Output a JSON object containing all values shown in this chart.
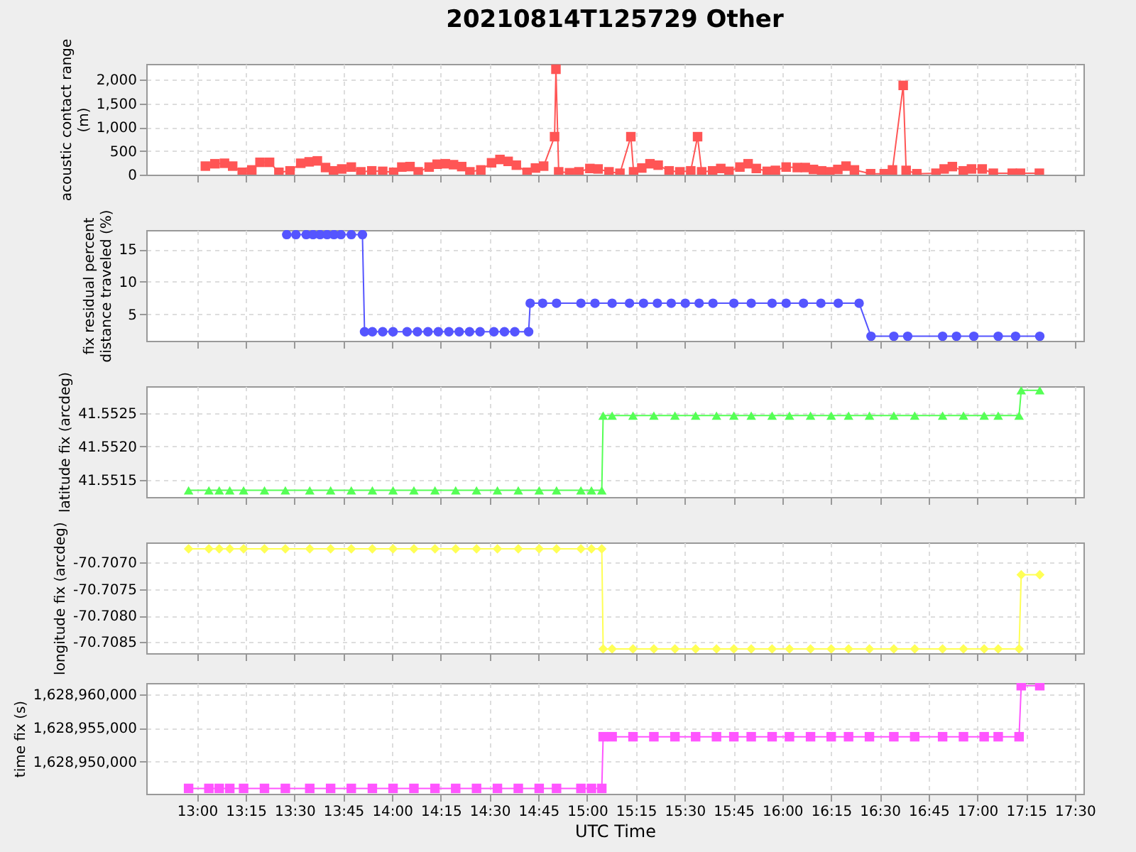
{
  "chart_data": [
    {
      "type": "line",
      "title": "20210814T125729 Other",
      "ylabel": "acoustic contact range (m)",
      "marker": "square",
      "line_style": "solid",
      "grid": true,
      "tick_labels": "y",
      "x": [
        13.043,
        13.092,
        13.141,
        13.183,
        13.232,
        13.281,
        13.323,
        13.372,
        13.42,
        13.477,
        13.532,
        13.575,
        13.617,
        13.659,
        13.7,
        13.742,
        13.791,
        13.84,
        13.896,
        13.952,
        14.008,
        14.05,
        14.092,
        14.134,
        14.19,
        14.231,
        14.273,
        14.315,
        14.357,
        14.399,
        14.455,
        14.51,
        14.553,
        14.595,
        14.637,
        14.692,
        14.735,
        14.777,
        14.833,
        14.84,
        14.854,
        14.91,
        14.958,
        15.014,
        15.056,
        15.112,
        15.168,
        15.224,
        15.238,
        15.28,
        15.322,
        15.364,
        15.42,
        15.475,
        15.531,
        15.566,
        15.587,
        15.643,
        15.685,
        15.727,
        15.783,
        15.825,
        15.867,
        15.923,
        15.965,
        16.02,
        16.077,
        16.118,
        16.16,
        16.202,
        16.244,
        16.285,
        16.327,
        16.37,
        16.453,
        16.523,
        16.565,
        16.62,
        16.635,
        16.69,
        16.788,
        16.83,
        16.872,
        16.928,
        16.97,
        17.025,
        17.082,
        17.179,
        17.221,
        17.318
      ],
      "series": [
        {
          "color": "#ff5555",
          "values": [
            180,
            230,
            240,
            180,
            50,
            100,
            260,
            260,
            50,
            80,
            240,
            270,
            290,
            150,
            80,
            120,
            160,
            60,
            80,
            70,
            50,
            160,
            170,
            60,
            160,
            220,
            230,
            210,
            170,
            60,
            100,
            250,
            320,
            280,
            200,
            50,
            140,
            180,
            800,
            2220,
            60,
            40,
            60,
            130,
            120,
            60,
            30,
            800,
            60,
            140,
            230,
            200,
            80,
            60,
            80,
            800,
            60,
            80,
            130,
            70,
            160,
            230,
            130,
            70,
            90,
            160,
            150,
            150,
            110,
            80,
            60,
            110,
            180,
            100,
            20,
            20,
            100,
            1880,
            90,
            20,
            30,
            120,
            170,
            80,
            120,
            120,
            30,
            30,
            30,
            30
          ]
        }
      ],
      "xlim": [
        12.74,
        17.544
      ],
      "xticks": [
        {
          "value": 13,
          "label": null
        },
        {
          "value": 13.25,
          "label": null
        },
        {
          "value": 13.5,
          "label": null
        },
        {
          "value": 13.75,
          "label": null
        },
        {
          "value": 14,
          "label": null
        },
        {
          "value": 14.25,
          "label": null
        },
        {
          "value": 14.5,
          "label": null
        },
        {
          "value": 14.75,
          "label": null
        },
        {
          "value": 15,
          "label": null
        },
        {
          "value": 15.25,
          "label": null
        },
        {
          "value": 15.5,
          "label": null
        },
        {
          "value": 15.75,
          "label": null
        },
        {
          "value": 16,
          "label": null
        },
        {
          "value": 16.25,
          "label": null
        },
        {
          "value": 16.5,
          "label": null
        },
        {
          "value": 16.75,
          "label": null
        },
        {
          "value": 17,
          "label": null
        },
        {
          "value": 17.25,
          "label": null
        },
        {
          "value": 17.5,
          "label": null
        }
      ],
      "ylim": [
        0,
        2333
      ],
      "yticks": [
        0,
        500,
        {
          "value": 1000,
          "label": "1,000"
        },
        {
          "value": 1500,
          "label": "1,500"
        },
        {
          "value": 2000,
          "label": "2,000"
        }
      ]
    },
    {
      "type": "line",
      "ylabel": "fix residual percent distance traveled (%)",
      "marker": "circle",
      "line_style": "solid",
      "grid": true,
      "tick_labels": "y",
      "x": [
        13.46,
        13.507,
        13.56,
        13.595,
        13.631,
        13.667,
        13.702,
        13.738,
        13.791,
        13.848,
        13.859,
        13.899,
        13.952,
        14.005,
        14.077,
        14.13,
        14.184,
        14.237,
        14.291,
        14.344,
        14.397,
        14.451,
        14.522,
        14.576,
        14.629,
        14.7,
        14.708,
        14.772,
        14.843,
        14.968,
        15.04,
        15.128,
        15.217,
        15.289,
        15.36,
        15.431,
        15.503,
        15.574,
        15.645,
        15.752,
        15.841,
        15.948,
        16.02,
        16.109,
        16.198,
        16.287,
        16.394,
        16.455,
        16.572,
        16.643,
        16.822,
        16.893,
        16.982,
        17.107,
        17.196,
        17.32
      ],
      "series": [
        {
          "color": "#5555ff",
          "values": [
            17.3,
            17.3,
            17.3,
            17.3,
            17.3,
            17.3,
            17.3,
            17.3,
            17.3,
            17.3,
            2.3,
            2.3,
            2.3,
            2.3,
            2.3,
            2.3,
            2.3,
            2.3,
            2.3,
            2.3,
            2.3,
            2.3,
            2.3,
            2.3,
            2.3,
            2.3,
            6.7,
            6.7,
            6.7,
            6.7,
            6.7,
            6.7,
            6.7,
            6.7,
            6.7,
            6.7,
            6.7,
            6.7,
            6.7,
            6.7,
            6.7,
            6.7,
            6.7,
            6.7,
            6.7,
            6.7,
            6.7,
            1.6,
            1.6,
            1.6,
            1.6,
            1.6,
            1.6,
            1.6,
            1.6,
            1.6
          ]
        }
      ],
      "xlim": [
        12.74,
        17.544
      ],
      "xticks": [
        {
          "value": 13,
          "label": null
        },
        {
          "value": 13.25,
          "label": null
        },
        {
          "value": 13.5,
          "label": null
        },
        {
          "value": 13.75,
          "label": null
        },
        {
          "value": 14,
          "label": null
        },
        {
          "value": 14.25,
          "label": null
        },
        {
          "value": 14.5,
          "label": null
        },
        {
          "value": 14.75,
          "label": null
        },
        {
          "value": 15,
          "label": null
        },
        {
          "value": 15.25,
          "label": null
        },
        {
          "value": 15.5,
          "label": null
        },
        {
          "value": 15.75,
          "label": null
        },
        {
          "value": 16,
          "label": null
        },
        {
          "value": 16.25,
          "label": null
        },
        {
          "value": 16.5,
          "label": null
        },
        {
          "value": 16.75,
          "label": null
        },
        {
          "value": 17,
          "label": null
        },
        {
          "value": 17.25,
          "label": null
        },
        {
          "value": 17.5,
          "label": null
        }
      ],
      "ylim": [
        0.9,
        18
      ],
      "yticks": [
        5,
        10,
        15
      ]
    },
    {
      "type": "line",
      "ylabel": "latitude fix (arcdeg)",
      "marker": "triangle",
      "line_style": "solid",
      "grid": true,
      "tick_labels": "y",
      "x": [
        12.957,
        13.061,
        13.114,
        13.168,
        13.239,
        13.346,
        13.453,
        13.578,
        13.685,
        13.791,
        13.899,
        14.005,
        14.112,
        14.22,
        14.326,
        14.433,
        14.54,
        14.647,
        14.754,
        14.843,
        14.968,
        15.022,
        15.075,
        15.082,
        15.128,
        15.235,
        15.342,
        15.45,
        15.556,
        15.663,
        15.752,
        15.841,
        15.948,
        16.037,
        16.145,
        16.251,
        16.34,
        16.447,
        16.572,
        16.679,
        16.822,
        16.929,
        17.035,
        17.107,
        17.214,
        17.225,
        17.32
      ],
      "series": [
        {
          "color": "#55ff55",
          "values": [
            41.55134,
            41.55134,
            41.55134,
            41.55134,
            41.55134,
            41.55134,
            41.55134,
            41.55134,
            41.55134,
            41.55134,
            41.55134,
            41.55134,
            41.55134,
            41.55134,
            41.55134,
            41.55134,
            41.55134,
            41.55134,
            41.55134,
            41.55134,
            41.55134,
            41.55134,
            41.55134,
            41.55246,
            41.55246,
            41.55246,
            41.55246,
            41.55246,
            41.55246,
            41.55246,
            41.55246,
            41.55246,
            41.55246,
            41.55246,
            41.55246,
            41.55246,
            41.55246,
            41.55246,
            41.55246,
            41.55246,
            41.55246,
            41.55246,
            41.55246,
            41.55246,
            41.55246,
            41.55284,
            41.55284
          ]
        }
      ],
      "xlim": [
        12.74,
        17.544
      ],
      "xticks": [
        {
          "value": 13,
          "label": null
        },
        {
          "value": 13.25,
          "label": null
        },
        {
          "value": 13.5,
          "label": null
        },
        {
          "value": 13.75,
          "label": null
        },
        {
          "value": 14,
          "label": null
        },
        {
          "value": 14.25,
          "label": null
        },
        {
          "value": 14.5,
          "label": null
        },
        {
          "value": 14.75,
          "label": null
        },
        {
          "value": 15,
          "label": null
        },
        {
          "value": 15.25,
          "label": null
        },
        {
          "value": 15.5,
          "label": null
        },
        {
          "value": 15.75,
          "label": null
        },
        {
          "value": 16,
          "label": null
        },
        {
          "value": 16.25,
          "label": null
        },
        {
          "value": 16.5,
          "label": null
        },
        {
          "value": 16.75,
          "label": null
        },
        {
          "value": 17,
          "label": null
        },
        {
          "value": 17.25,
          "label": null
        },
        {
          "value": 17.5,
          "label": null
        }
      ],
      "ylim": [
        41.55124,
        41.5529
      ],
      "yticks": [
        41.5515,
        {
          "value": 41.552,
          "label": "41.5520"
        },
        41.5525
      ]
    },
    {
      "type": "line",
      "ylabel": "longitude fix (arcdeg)",
      "marker": "diamond",
      "line_style": "solid",
      "grid": true,
      "tick_labels": "y",
      "x": [
        12.957,
        13.061,
        13.114,
        13.168,
        13.239,
        13.346,
        13.453,
        13.578,
        13.685,
        13.791,
        13.899,
        14.005,
        14.112,
        14.22,
        14.326,
        14.433,
        14.54,
        14.647,
        14.754,
        14.843,
        14.968,
        15.022,
        15.075,
        15.082,
        15.128,
        15.235,
        15.342,
        15.45,
        15.556,
        15.663,
        15.752,
        15.841,
        15.948,
        16.037,
        16.145,
        16.251,
        16.34,
        16.447,
        16.572,
        16.679,
        16.822,
        16.929,
        17.035,
        17.107,
        17.214,
        17.225,
        17.32
      ],
      "series": [
        {
          "color": "#ffff55",
          "values": [
            -70.70674,
            -70.70674,
            -70.70674,
            -70.70674,
            -70.70674,
            -70.70674,
            -70.70674,
            -70.70674,
            -70.70674,
            -70.70674,
            -70.70674,
            -70.70674,
            -70.70674,
            -70.70674,
            -70.70674,
            -70.70674,
            -70.70674,
            -70.70674,
            -70.70674,
            -70.70674,
            -70.70674,
            -70.70674,
            -70.70674,
            -70.70863,
            -70.70863,
            -70.70863,
            -70.70863,
            -70.70863,
            -70.70863,
            -70.70863,
            -70.70863,
            -70.70863,
            -70.70863,
            -70.70863,
            -70.70863,
            -70.70863,
            -70.70863,
            -70.70863,
            -70.70863,
            -70.70863,
            -70.70863,
            -70.70863,
            -70.70863,
            -70.70863,
            -70.70863,
            -70.70723,
            -70.70723
          ]
        }
      ],
      "xlim": [
        12.74,
        17.544
      ],
      "xticks": [
        {
          "value": 13,
          "label": null
        },
        {
          "value": 13.25,
          "label": null
        },
        {
          "value": 13.5,
          "label": null
        },
        {
          "value": 13.75,
          "label": null
        },
        {
          "value": 14,
          "label": null
        },
        {
          "value": 14.25,
          "label": null
        },
        {
          "value": 14.5,
          "label": null
        },
        {
          "value": 14.75,
          "label": null
        },
        {
          "value": 15,
          "label": null
        },
        {
          "value": 15.25,
          "label": null
        },
        {
          "value": 15.5,
          "label": null
        },
        {
          "value": 15.75,
          "label": null
        },
        {
          "value": 16,
          "label": null
        },
        {
          "value": 16.25,
          "label": null
        },
        {
          "value": 16.5,
          "label": null
        },
        {
          "value": 16.75,
          "label": null
        },
        {
          "value": 17,
          "label": null
        },
        {
          "value": 17.25,
          "label": null
        },
        {
          "value": 17.5,
          "label": null
        }
      ],
      "ylim": [
        -70.70871,
        -70.70662
      ],
      "yticks": [
        {
          "value": -70.7085,
          "label": "-70.7085"
        },
        {
          "value": -70.708,
          "label": "-70.7080"
        },
        {
          "value": -70.7075,
          "label": "-70.7075"
        },
        {
          "value": -70.707,
          "label": "-70.7070"
        }
      ]
    },
    {
      "type": "line",
      "ylabel": "time fix (s)",
      "xlabel": "UTC Time",
      "marker": "square",
      "line_style": "solid",
      "grid": true,
      "x": [
        12.957,
        13.061,
        13.114,
        13.168,
        13.239,
        13.346,
        13.453,
        13.578,
        13.685,
        13.791,
        13.899,
        14.005,
        14.112,
        14.22,
        14.326,
        14.433,
        14.54,
        14.647,
        14.754,
        14.843,
        14.968,
        15.022,
        15.075,
        15.082,
        15.128,
        15.235,
        15.342,
        15.45,
        15.556,
        15.663,
        15.752,
        15.841,
        15.948,
        16.037,
        16.145,
        16.251,
        16.34,
        16.447,
        16.572,
        16.679,
        16.822,
        16.929,
        17.035,
        17.107,
        17.214,
        17.225,
        17.32
      ],
      "series": [
        {
          "color": "#ff55ff",
          "values": [
            1628946000,
            1628946000,
            1628946000,
            1628946000,
            1628946000,
            1628946000,
            1628946000,
            1628946000,
            1628946000,
            1628946000,
            1628946000,
            1628946000,
            1628946000,
            1628946000,
            1628946000,
            1628946000,
            1628946000,
            1628946000,
            1628946000,
            1628946000,
            1628946000,
            1628946000,
            1628946000,
            1628953700,
            1628953700,
            1628953700,
            1628953700,
            1628953700,
            1628953700,
            1628953700,
            1628953700,
            1628953700,
            1628953700,
            1628953700,
            1628953700,
            1628953700,
            1628953700,
            1628953700,
            1628953700,
            1628953700,
            1628953700,
            1628953700,
            1628953700,
            1628953700,
            1628953700,
            1628961300,
            1628961300
          ]
        }
      ],
      "xlim": [
        12.74,
        17.544
      ],
      "xticks": [
        {
          "value": 13,
          "label": "13:00"
        },
        {
          "value": 13.25,
          "label": "13:15"
        },
        {
          "value": 13.5,
          "label": "13:30"
        },
        {
          "value": 13.75,
          "label": "13:45"
        },
        {
          "value": 14,
          "label": "14:00"
        },
        {
          "value": 14.25,
          "label": "14:15"
        },
        {
          "value": 14.5,
          "label": "14:30"
        },
        {
          "value": 14.75,
          "label": "14:45"
        },
        {
          "value": 15,
          "label": "15:00"
        },
        {
          "value": 15.25,
          "label": "15:15"
        },
        {
          "value": 15.5,
          "label": "15:30"
        },
        {
          "value": 15.75,
          "label": "15:45"
        },
        {
          "value": 16,
          "label": "16:00"
        },
        {
          "value": 16.25,
          "label": "16:15"
        },
        {
          "value": 16.5,
          "label": "16:30"
        },
        {
          "value": 16.75,
          "label": "16:45"
        },
        {
          "value": 17,
          "label": "17:00"
        },
        {
          "value": 17.25,
          "label": "17:15"
        },
        {
          "value": 17.5,
          "label": "17:30"
        }
      ],
      "ylim": [
        1628945200,
        1628961700
      ],
      "yticks": [
        {
          "value": 1628950000,
          "label": "1,628,950,000"
        },
        {
          "value": 1628955000,
          "label": "1,628,955,000"
        },
        {
          "value": 1628960000,
          "label": "1,628,960,000"
        }
      ]
    }
  ]
}
